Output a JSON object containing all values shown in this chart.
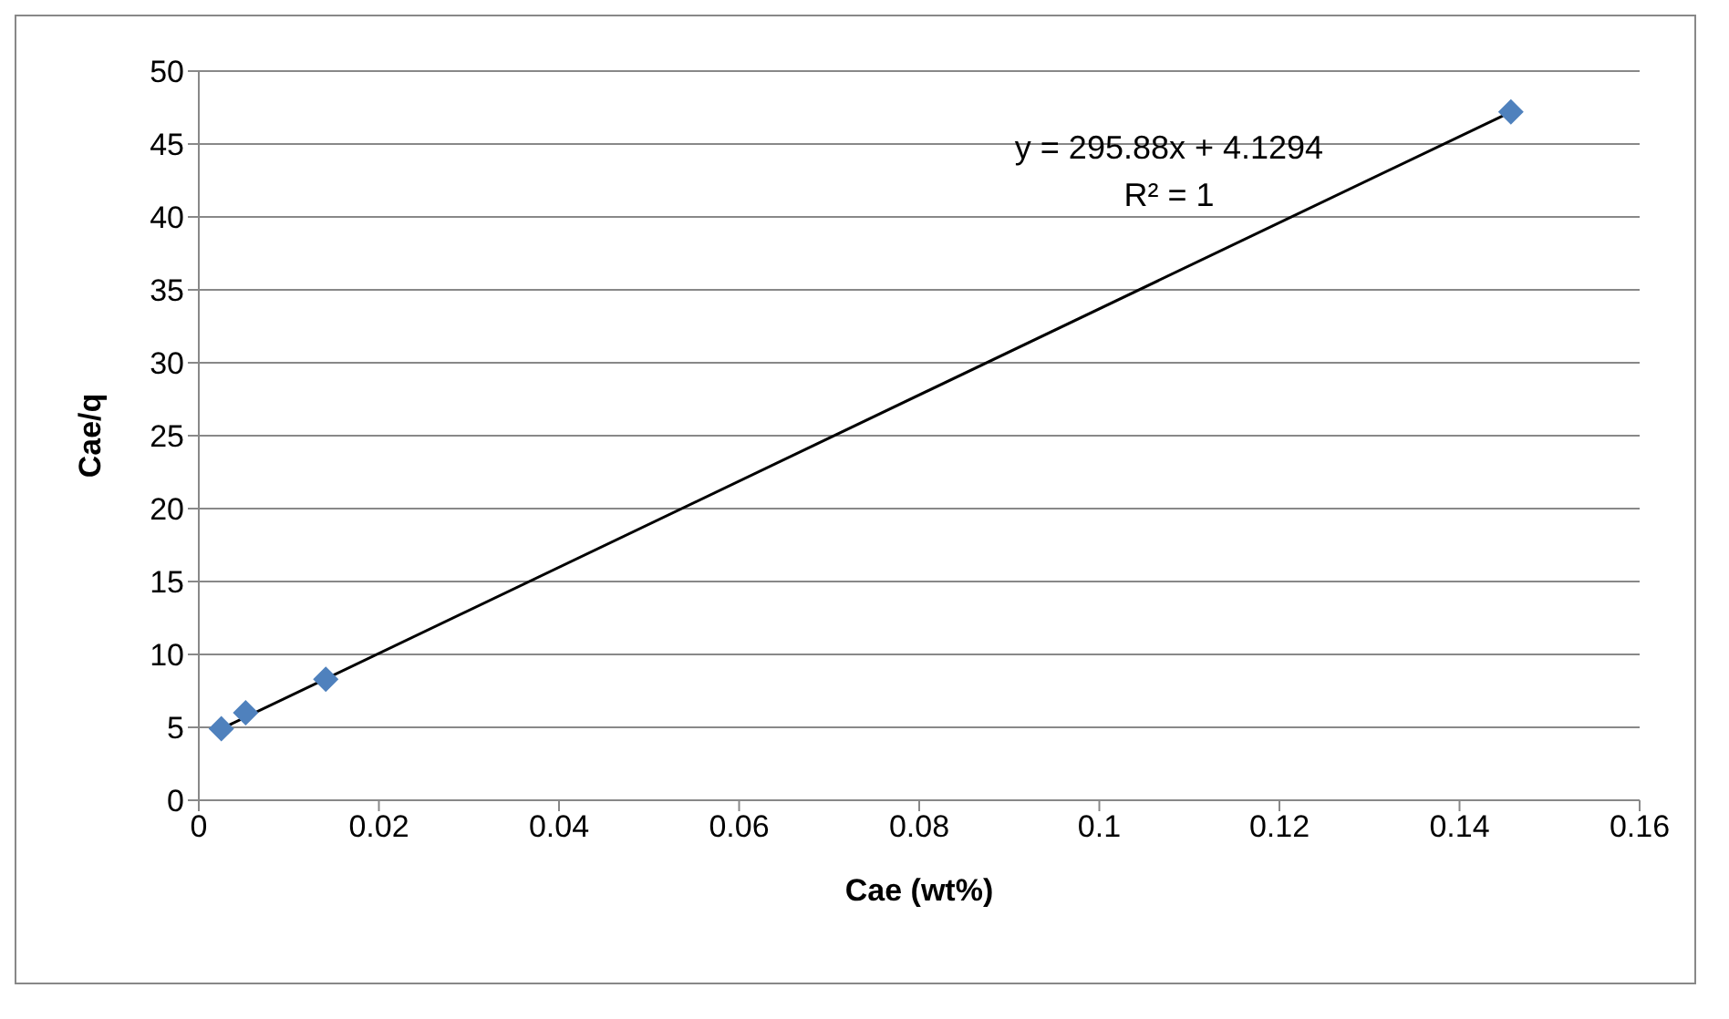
{
  "chart_data": {
    "type": "scatter",
    "xlabel": "Cae (wt%)",
    "ylabel": "Cae/q",
    "xlim": [
      0,
      0.16
    ],
    "xticks": [
      0,
      0.02,
      0.04,
      0.06,
      0.08,
      0.1,
      0.12,
      0.14,
      0.16
    ],
    "ylim": [
      0,
      50
    ],
    "yticks": [
      0,
      5,
      10,
      15,
      20,
      25,
      30,
      35,
      40,
      45,
      50
    ],
    "grid": "y",
    "legend": false,
    "series": [
      {
        "color": "#4f81bd",
        "marker": "diamond",
        "x": [
          0.0025,
          0.0052,
          0.0141,
          0.1457
        ],
        "values": [
          4.9,
          6.0,
          8.3,
          47.2
        ]
      },
      {
        "type": "line",
        "color": "#000000",
        "marker": "none",
        "line_style": "solid",
        "x": [
          0.0025,
          0.1457
        ],
        "values": [
          4.9,
          47.2
        ]
      }
    ],
    "annotations": [
      "y = 295.88x + 4.1294",
      "R² = 1"
    ]
  }
}
